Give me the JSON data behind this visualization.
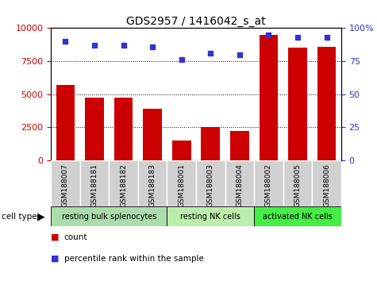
{
  "title": "GDS2957 / 1416042_s_at",
  "samples": [
    "GSM188007",
    "GSM188181",
    "GSM188182",
    "GSM188183",
    "GSM188001",
    "GSM188003",
    "GSM188004",
    "GSM188002",
    "GSM188005",
    "GSM188006"
  ],
  "counts": [
    5700,
    4750,
    4750,
    3900,
    1500,
    2500,
    2200,
    9500,
    8500,
    8600
  ],
  "percentiles": [
    90,
    87,
    87,
    86,
    76,
    81,
    80,
    95,
    93,
    93
  ],
  "ylim_left": [
    0,
    10000
  ],
  "ylim_right": [
    0,
    100
  ],
  "yticks_left": [
    0,
    2500,
    5000,
    7500,
    10000
  ],
  "yticks_right": [
    0,
    25,
    50,
    75,
    100
  ],
  "bar_color": "#cc0000",
  "dot_color": "#3333cc",
  "groups": [
    {
      "label": "resting bulk splenocytes",
      "start": 0,
      "end": 4,
      "color": "#aaddaa"
    },
    {
      "label": "resting NK cells",
      "start": 4,
      "end": 7,
      "color": "#bbeeaa"
    },
    {
      "label": "activated NK cells",
      "start": 7,
      "end": 10,
      "color": "#44ee44"
    }
  ],
  "cell_type_label": "cell type",
  "legend_count_label": "count",
  "legend_percentile_label": "percentile rank within the sample",
  "tick_color_left": "#cc0000",
  "tick_color_right": "#3333cc",
  "col_bg": "#d0d0d0",
  "plot_bg": "#ffffff"
}
